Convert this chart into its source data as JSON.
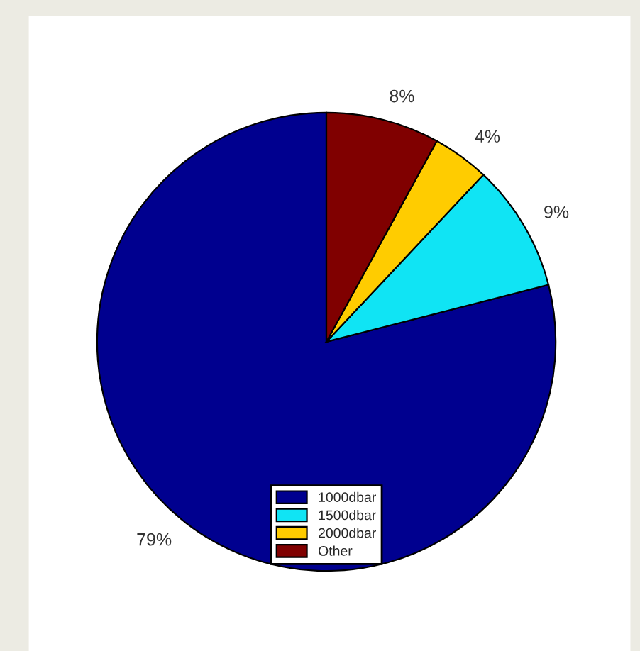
{
  "chart_data": {
    "type": "pie",
    "categories": [
      "1000dbar",
      "1500dbar",
      "2000dbar",
      "Other"
    ],
    "values": [
      79,
      9,
      4,
      8
    ],
    "value_labels": [
      "79%",
      "9%",
      "4%",
      "8%"
    ],
    "colors": [
      "#00008f",
      "#10e4f4",
      "#ffcc00",
      "#800000"
    ],
    "legend": "bottom"
  }
}
